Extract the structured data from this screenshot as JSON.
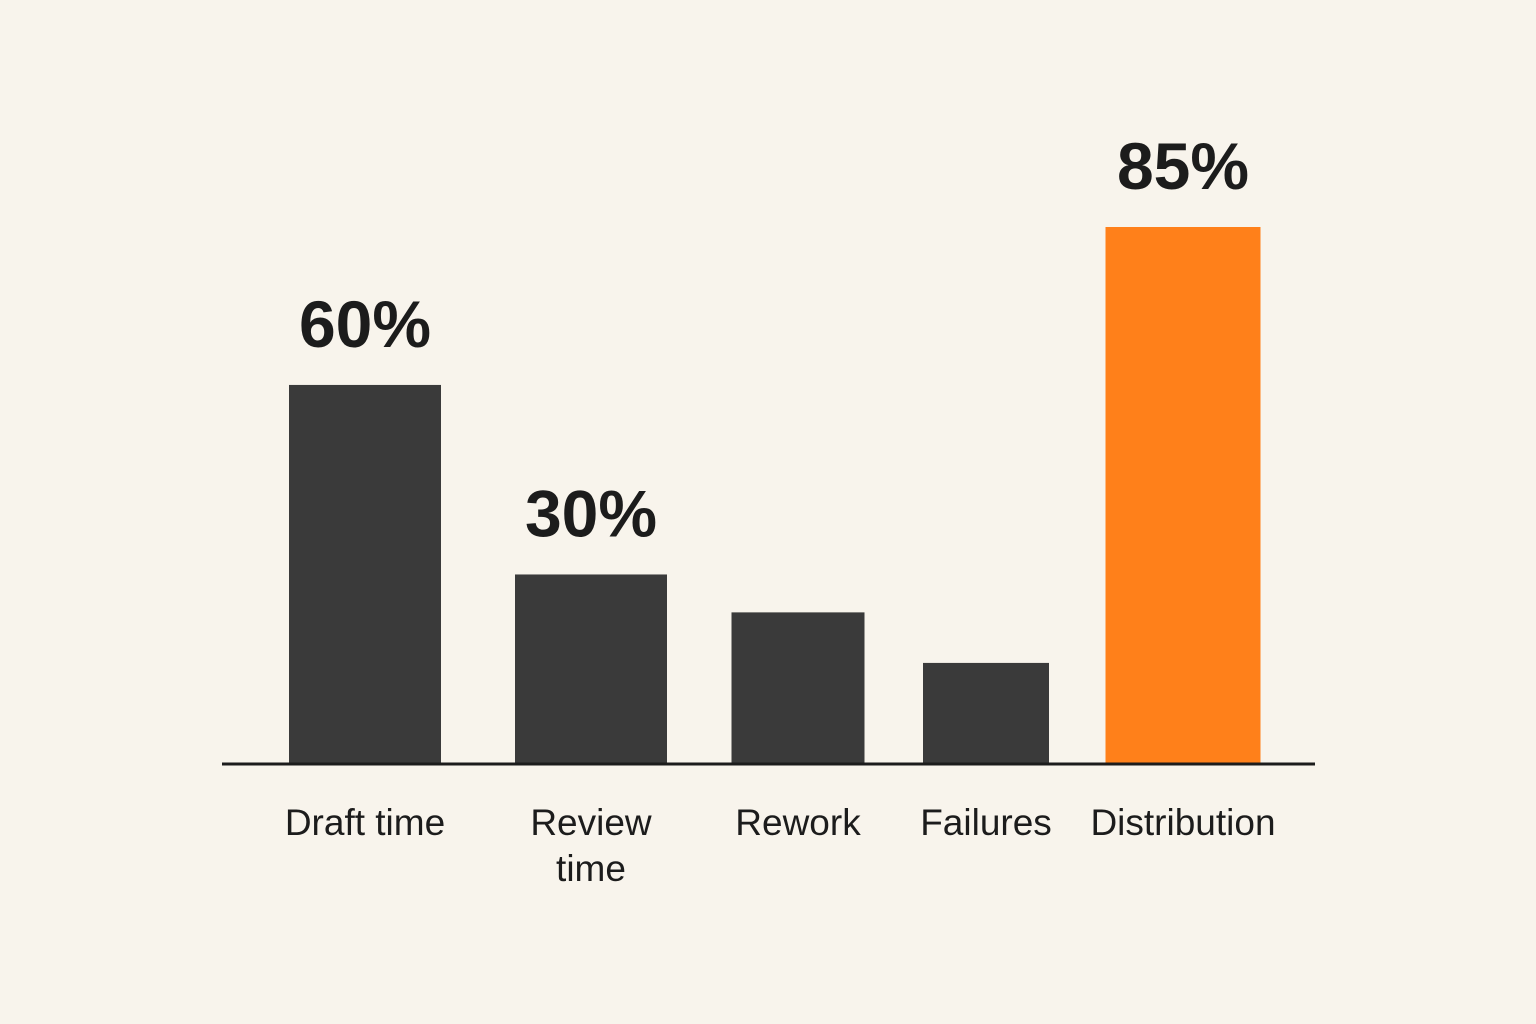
{
  "chart_data": {
    "type": "bar",
    "categories": [
      "Draft time",
      "Review time",
      "Rework",
      "Failures",
      "Distribution"
    ],
    "values": [
      60,
      30,
      24,
      16,
      85
    ],
    "value_labels": [
      "60%",
      "30%",
      null,
      null,
      "85%"
    ],
    "colors": [
      "#3a3a3a",
      "#3a3a3a",
      "#3a3a3a",
      "#3a3a3a",
      "#ff801a"
    ]
  }
}
